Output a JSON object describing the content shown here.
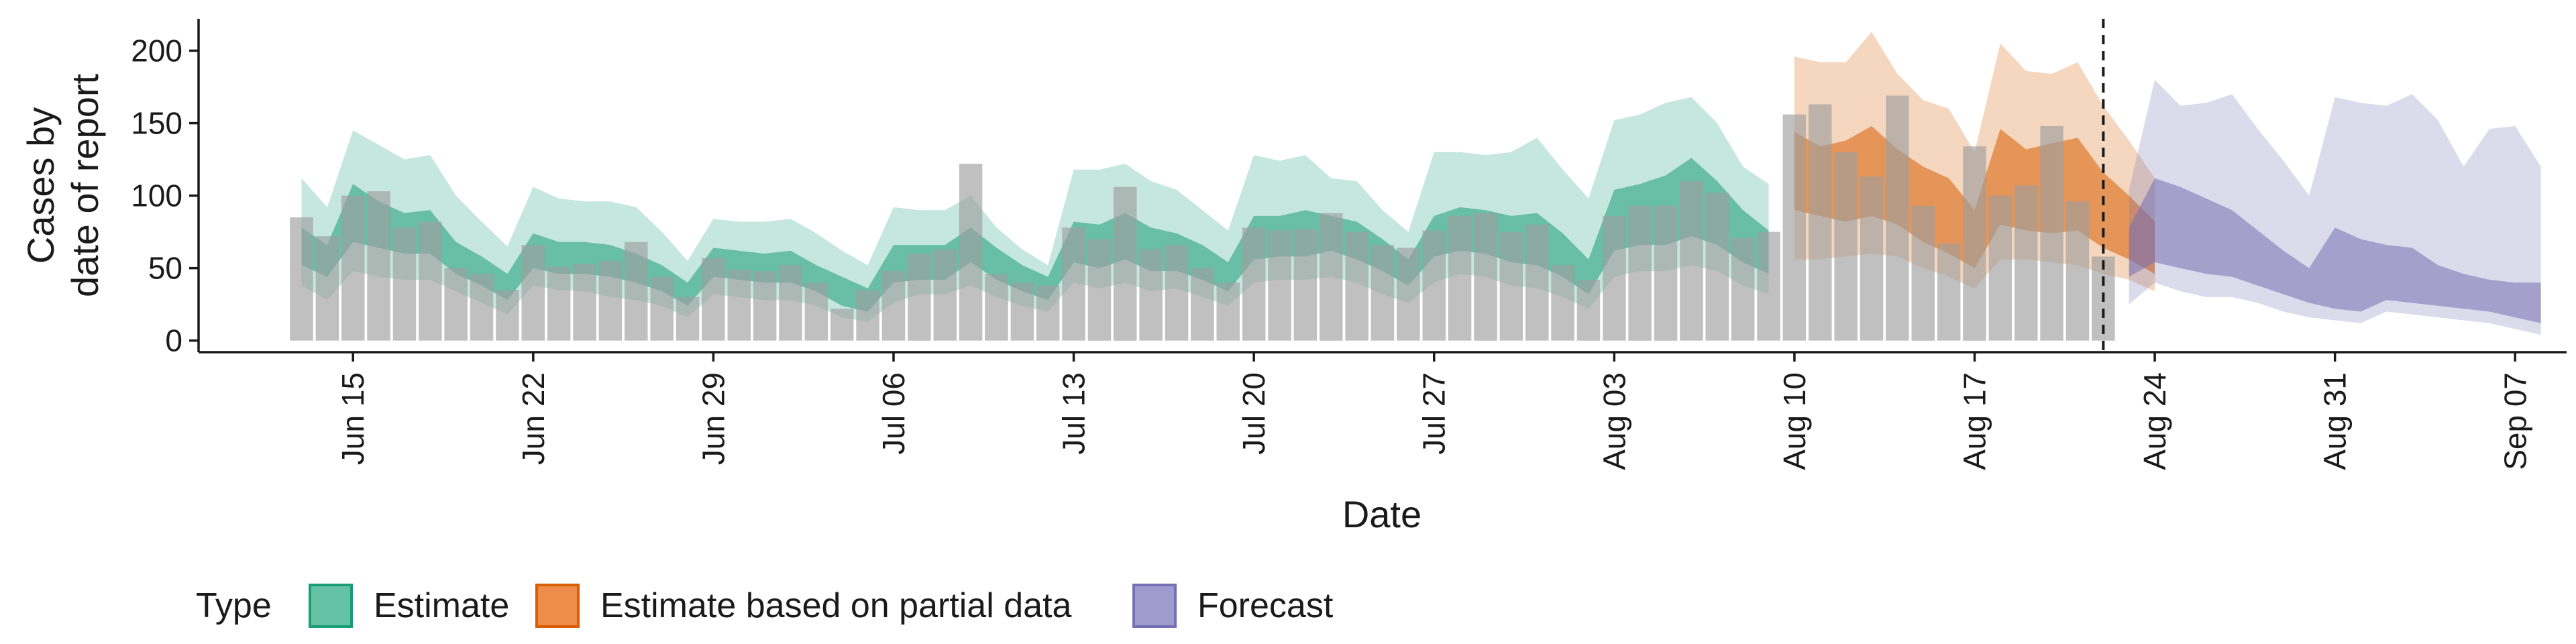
{
  "chart_data": {
    "type": "bar",
    "xlabel": "Date",
    "ylabel_lines": [
      "Cases by",
      "date of report"
    ],
    "ylim": [
      -8,
      222
    ],
    "xlim": [
      "2020-06-09",
      "2020-09-09"
    ],
    "y_ticks": [
      0,
      50,
      100,
      150,
      200
    ],
    "y_tick_labels": [
      "0",
      "50",
      "100",
      "150",
      "200"
    ],
    "x_ticks": [
      "2020-06-15",
      "2020-06-22",
      "2020-06-29",
      "2020-07-06",
      "2020-07-13",
      "2020-07-20",
      "2020-07-27",
      "2020-08-03",
      "2020-08-10",
      "2020-08-17",
      "2020-08-24",
      "2020-08-31",
      "2020-09-07"
    ],
    "x_tick_labels": [
      "Jun 15",
      "Jun 22",
      "Jun 29",
      "Jul 06",
      "Jul 13",
      "Jul 20",
      "Jul 27",
      "Aug 03",
      "Aug 10",
      "Aug 17",
      "Aug 24",
      "Aug 31",
      "Sep 07"
    ],
    "vline_date": "2020-08-22",
    "grid": false,
    "bars": {
      "start_date": "2020-06-13",
      "values": [
        85,
        72,
        100,
        103,
        78,
        82,
        50,
        46,
        35,
        66,
        51,
        53,
        55,
        68,
        44,
        30,
        57,
        49,
        48,
        52,
        40,
        22,
        35,
        48,
        60,
        63,
        122,
        46,
        40,
        38,
        78,
        70,
        106,
        63,
        66,
        50,
        40,
        78,
        76,
        77,
        88,
        75,
        66,
        64,
        76,
        86,
        88,
        75,
        80,
        52,
        42,
        86,
        93,
        93,
        110,
        102,
        71,
        75,
        156,
        163,
        130,
        113,
        169,
        93,
        67,
        134,
        100,
        107,
        148,
        96,
        58
      ]
    },
    "series": [
      {
        "name": "Estimate",
        "start_date": "2020-06-13",
        "band90_low": [
          38,
          28,
          48,
          44,
          42,
          42,
          34,
          26,
          18,
          38,
          35,
          34,
          30,
          28,
          24,
          16,
          32,
          30,
          28,
          28,
          24,
          16,
          13,
          26,
          32,
          32,
          38,
          30,
          24,
          20,
          40,
          36,
          40,
          34,
          36,
          30,
          24,
          40,
          42,
          42,
          44,
          40,
          32,
          26,
          40,
          46,
          44,
          38,
          36,
          30,
          22,
          44,
          48,
          48,
          52,
          48,
          38,
          32
        ],
        "band90_high": [
          112,
          92,
          145,
          135,
          125,
          128,
          100,
          82,
          65,
          106,
          98,
          96,
          96,
          92,
          75,
          55,
          84,
          82,
          82,
          84,
          74,
          62,
          52,
          92,
          90,
          90,
          100,
          78,
          63,
          52,
          118,
          118,
          122,
          110,
          104,
          90,
          76,
          128,
          124,
          128,
          112,
          110,
          90,
          75,
          130,
          130,
          128,
          130,
          140,
          118,
          98,
          152,
          156,
          164,
          168,
          150,
          120,
          108
        ],
        "band50_low": [
          52,
          44,
          68,
          64,
          60,
          60,
          46,
          38,
          28,
          50,
          46,
          46,
          44,
          40,
          34,
          24,
          44,
          42,
          40,
          40,
          34,
          24,
          20,
          40,
          42,
          42,
          54,
          42,
          34,
          28,
          54,
          50,
          56,
          48,
          48,
          42,
          34,
          56,
          58,
          58,
          62,
          56,
          48,
          38,
          58,
          62,
          60,
          54,
          52,
          44,
          32,
          62,
          66,
          66,
          72,
          66,
          54,
          46
        ],
        "band50_high": [
          78,
          66,
          108,
          96,
          88,
          90,
          68,
          58,
          46,
          74,
          68,
          68,
          66,
          60,
          52,
          40,
          64,
          62,
          60,
          62,
          52,
          44,
          36,
          66,
          66,
          66,
          78,
          64,
          52,
          44,
          82,
          80,
          88,
          78,
          74,
          66,
          54,
          86,
          86,
          90,
          86,
          82,
          70,
          56,
          86,
          92,
          90,
          86,
          88,
          74,
          56,
          104,
          108,
          114,
          126,
          110,
          90,
          76
        ]
      },
      {
        "name": "Estimate based on partial data",
        "start_date": "2020-08-10",
        "band90_low": [
          56,
          56,
          58,
          60,
          58,
          50,
          44,
          36,
          56,
          56,
          54,
          52,
          46,
          42,
          34
        ],
        "band90_high": [
          196,
          192,
          192,
          213,
          184,
          166,
          160,
          130,
          205,
          186,
          184,
          192,
          162,
          138,
          112
        ],
        "band50_low": [
          90,
          86,
          82,
          86,
          80,
          68,
          60,
          50,
          80,
          76,
          74,
          76,
          64,
          56,
          46
        ],
        "band50_high": [
          144,
          134,
          138,
          148,
          132,
          120,
          112,
          90,
          146,
          132,
          136,
          140,
          116,
          100,
          82
        ]
      },
      {
        "name": "Forecast",
        "start_date": "2020-08-23",
        "band90_low": [
          25,
          40,
          34,
          30,
          30,
          26,
          20,
          16,
          14,
          12,
          20,
          18,
          16,
          14,
          12,
          8,
          4
        ],
        "band90_high": [
          104,
          180,
          162,
          164,
          170,
          146,
          124,
          100,
          168,
          164,
          162,
          170,
          152,
          120,
          146,
          148,
          120
        ],
        "band50_low": [
          44,
          54,
          50,
          46,
          44,
          38,
          32,
          26,
          22,
          20,
          28,
          26,
          24,
          22,
          20,
          16,
          12
        ],
        "band50_high": [
          78,
          112,
          106,
          98,
          90,
          76,
          62,
          50,
          78,
          70,
          66,
          64,
          52,
          46,
          42,
          40,
          40
        ]
      }
    ],
    "legend": {
      "title": "Type",
      "position": "bottom",
      "entries": [
        "Estimate",
        "Estimate based on partial data",
        "Forecast"
      ]
    },
    "colors": {
      "bars": "#9e9e9e",
      "estimate_fill": "#1b9e77",
      "partial_fill": "#d95f02",
      "forecast_fill": "#7570b3",
      "legend_estimate": "#66c2a5",
      "legend_partial": "#ec8d4a",
      "legend_forecast": "#9f9bcf"
    }
  }
}
